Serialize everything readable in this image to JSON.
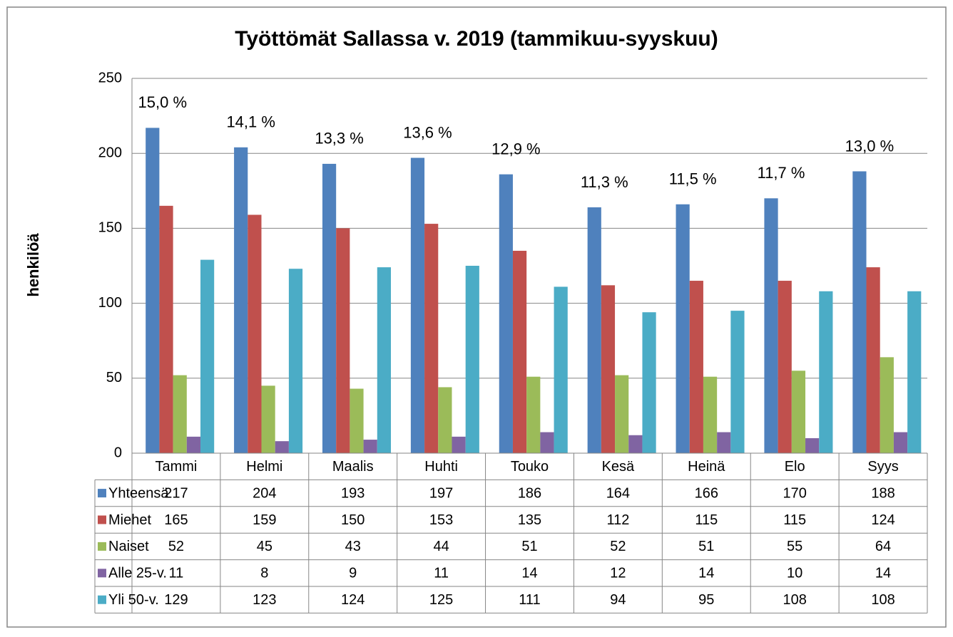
{
  "chart_data": {
    "type": "bar",
    "title": "Työttömät Sallassa v. 2019 (tammikuu-syyskuu)",
    "y_label": "henkilöä",
    "categories": [
      "Tammi",
      "Helmi",
      "Maalis",
      "Huhti",
      "Touko",
      "Kesä",
      "Heinä",
      "Elo",
      "Syys"
    ],
    "series": [
      {
        "name": "Yhteensä",
        "color": "#4f81bd",
        "values": [
          217,
          204,
          193,
          197,
          186,
          164,
          166,
          170,
          188
        ]
      },
      {
        "name": "Miehet",
        "color": "#c0504d",
        "values": [
          165,
          159,
          150,
          153,
          135,
          112,
          115,
          115,
          124
        ]
      },
      {
        "name": "Naiset",
        "color": "#9bbb59",
        "values": [
          52,
          45,
          43,
          44,
          51,
          52,
          51,
          55,
          64
        ]
      },
      {
        "name": "Alle 25-v.",
        "color": "#8064a2",
        "values": [
          11,
          8,
          9,
          11,
          14,
          12,
          14,
          10,
          14
        ]
      },
      {
        "name": "Yli 50-v.",
        "color": "#4bacc6",
        "values": [
          129,
          123,
          124,
          125,
          111,
          94,
          95,
          108,
          108
        ]
      }
    ],
    "rate_labels": [
      "15,0 %",
      "14,1 %",
      "13,3 %",
      "13,6 %",
      "12,9 %",
      "11,3 %",
      "11,5 %",
      "11,7 %",
      "13,0 %"
    ],
    "ylim": [
      0,
      250
    ],
    "yticks": [
      0,
      50,
      100,
      150,
      200,
      250
    ],
    "grid": true,
    "data_table": true
  }
}
